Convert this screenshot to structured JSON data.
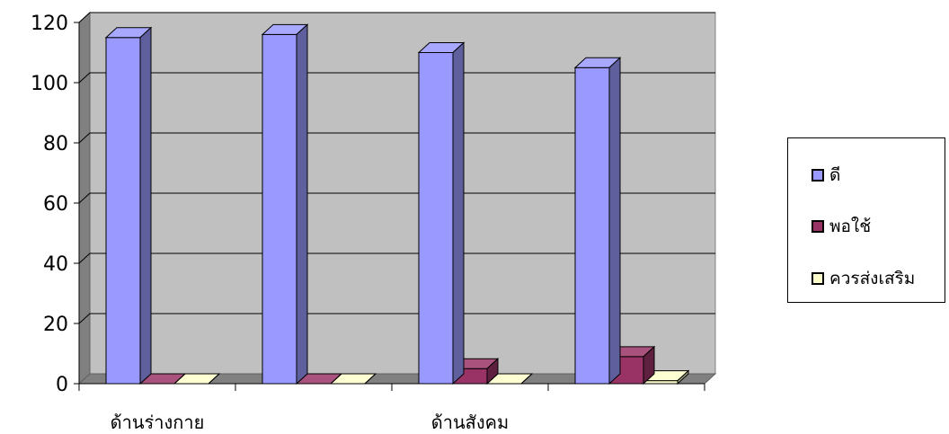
{
  "chart_data": {
    "type": "bar",
    "style": "3d-clustered-column",
    "categories": [
      "ด้านร่างกาย",
      "",
      "ด้านสังคม",
      ""
    ],
    "category_labels_shown": [
      "ด้านร่างกาย",
      "ด้านสังคม"
    ],
    "series": [
      {
        "name": "ดี",
        "values": [
          115,
          116,
          110,
          105
        ],
        "color": "#9999ff"
      },
      {
        "name": "พอใช้",
        "values": [
          0,
          0,
          5,
          9
        ],
        "color": "#993366"
      },
      {
        "name": "ควรส่งเสริม",
        "values": [
          0,
          0,
          0,
          1
        ],
        "color": "#ffffcc"
      }
    ],
    "ylim": [
      0,
      120
    ],
    "yticks": [
      "0",
      "20",
      "40",
      "60",
      "80",
      "100",
      "120"
    ],
    "grid": true,
    "legend_position": "right",
    "plot_background": "#c0c0c0"
  }
}
